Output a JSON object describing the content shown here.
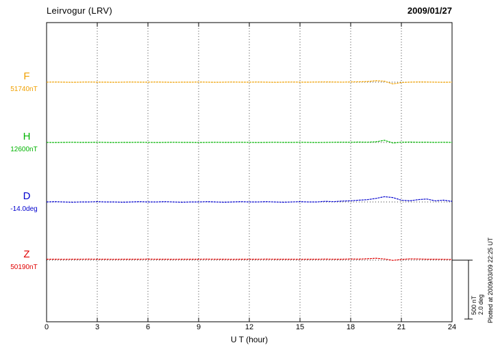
{
  "header": {
    "station": "Leirvogur (LRV)",
    "date": "2009/01/27"
  },
  "axis": {
    "xlabel": "U T (hour)",
    "ticks": [
      0,
      3,
      6,
      9,
      12,
      15,
      18,
      21,
      24
    ]
  },
  "scalebar": {
    "label_nt": "500 nT",
    "label_deg": "2.0 deg"
  },
  "footer": {
    "plotted_at": "Plotted at 2009/03/09 22:25 UT"
  },
  "chart_data": {
    "type": "line",
    "title": "Leirvogur (LRV) magnetogram 2009/01/27",
    "xlabel": "U T (hour)",
    "xlim": [
      0,
      24
    ],
    "x_start": 0,
    "x_step": 0.5,
    "grid": "dotted-vertical-every-3h",
    "legend_position": "left-margin",
    "scale": {
      "nT_per_bar": 500,
      "deg_per_bar": 2.0
    },
    "series": [
      {
        "name": "F",
        "label": "F",
        "baseline_label": "51740nT",
        "units": "nT",
        "color": "#F0A000",
        "values": [
          0,
          1,
          0,
          -1,
          0,
          1,
          0,
          0,
          -1,
          0,
          1,
          0,
          0,
          1,
          0,
          -1,
          0,
          0,
          1,
          0,
          -1,
          0,
          1,
          0,
          0,
          1,
          0,
          -1,
          0,
          1,
          0,
          0,
          1,
          2,
          1,
          0,
          2,
          3,
          5,
          12,
          8,
          -15,
          -3,
          0,
          2,
          1,
          0,
          -1,
          0
        ]
      },
      {
        "name": "H",
        "label": "H",
        "baseline_label": "12600nT",
        "units": "nT",
        "color": "#00B400",
        "values": [
          0,
          -1,
          0,
          1,
          0,
          0,
          1,
          0,
          -1,
          0,
          0,
          1,
          0,
          -1,
          0,
          1,
          0,
          0,
          -1,
          0,
          1,
          0,
          0,
          1,
          0,
          -1,
          0,
          1,
          0,
          0,
          1,
          0,
          -1,
          0,
          1,
          2,
          1,
          3,
          2,
          5,
          18,
          -5,
          2,
          3,
          1,
          2,
          0,
          1,
          0
        ]
      },
      {
        "name": "D",
        "label": "D",
        "baseline_label": "-14.0deg",
        "units": "deg",
        "color": "#0000CE",
        "values": [
          0,
          0.01,
          0,
          -0.01,
          0,
          0,
          0.01,
          0,
          0,
          -0.01,
          0,
          0.01,
          0,
          0,
          0.01,
          0,
          -0.01,
          0,
          0,
          0.01,
          0,
          -0.01,
          0,
          0.01,
          0,
          0,
          0.01,
          0,
          -0.01,
          0,
          0.01,
          0,
          0,
          0.02,
          0.01,
          0.03,
          0.04,
          0.06,
          0.08,
          0.12,
          0.18,
          0.15,
          0.06,
          0.04,
          0.08,
          0.1,
          0.04,
          0.06,
          0.02
        ]
      },
      {
        "name": "Z",
        "label": "Z",
        "baseline_label": "50190nT",
        "units": "nT",
        "color": "#E00000",
        "values": [
          8,
          8,
          7,
          8,
          8,
          9,
          8,
          8,
          7,
          8,
          8,
          8,
          9,
          8,
          8,
          7,
          8,
          8,
          8,
          9,
          8,
          8,
          7,
          8,
          8,
          8,
          9,
          8,
          8,
          8,
          7,
          8,
          8,
          9,
          8,
          8,
          10,
          9,
          12,
          16,
          10,
          -2,
          6,
          11,
          10,
          8,
          8,
          7,
          6
        ]
      }
    ]
  }
}
